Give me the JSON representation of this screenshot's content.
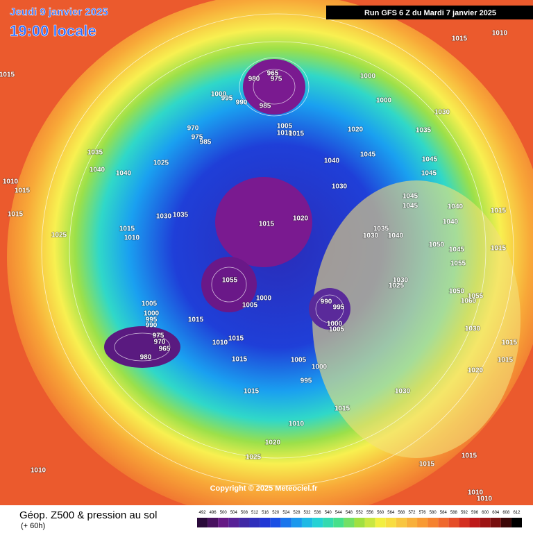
{
  "header": {
    "date": "Jeudi 9 janvier 2025",
    "time": "19:00 locale",
    "run": "Run GFS 6 Z du Mardi 7 janvier 2025"
  },
  "copyright": "Copyright © 2025 Meteociel.fr",
  "footer": {
    "title": "Géop. Z500 & pression au sol",
    "lead": "(+ 60h)"
  },
  "legend": {
    "ticks": [
      492,
      496,
      500,
      504,
      508,
      512,
      516,
      520,
      524,
      528,
      532,
      536,
      540,
      544,
      548,
      552,
      556,
      560,
      564,
      568,
      572,
      576,
      580,
      584,
      588,
      592,
      596,
      600,
      604,
      608,
      612
    ]
  },
  "isobar_labels": [
    1015,
    1010,
    1015,
    965,
    980,
    975,
    1000,
    1000,
    1000,
    995,
    990,
    985,
    970,
    975,
    985,
    1005,
    1010,
    1015,
    1020,
    1030,
    1035,
    1045,
    1045,
    1045,
    1035,
    1040,
    1040,
    1025,
    1010,
    1015,
    1015,
    1030,
    1035,
    1015,
    1010,
    1025,
    1040,
    1030,
    1020,
    1015,
    1045,
    1045,
    1040,
    1040,
    1015,
    1035,
    1030,
    1040,
    1050,
    1045,
    1015,
    1055,
    1055,
    1000,
    1005,
    1030,
    1025,
    990,
    995,
    1000,
    1005,
    1050,
    1055,
    1060,
    1005,
    1000,
    995,
    990,
    975,
    970,
    965,
    980,
    1015,
    1010,
    1015,
    1015,
    1005,
    1000,
    995,
    1030,
    1015,
    1015,
    1020,
    1015,
    1030,
    1015,
    1010,
    1020,
    1025,
    1010,
    1015,
    1015,
    1010,
    1010
  ]
}
